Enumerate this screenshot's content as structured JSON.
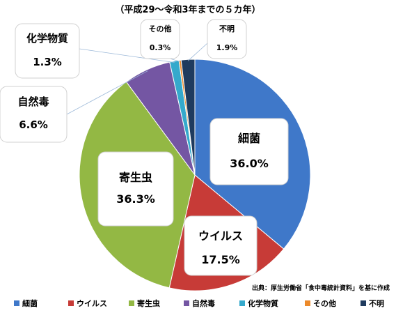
{
  "chart_data": {
    "type": "pie",
    "title": "（平成29～令和3年までの５カ年）",
    "source": "出典：厚生労働省「食中毒統計資料」を基に作成",
    "legend_position": "bottom",
    "slices": [
      {
        "name": "細菌",
        "value": 36.0,
        "label": "36.0%",
        "color": "#3f78c9"
      },
      {
        "name": "ウイルス",
        "value": 17.5,
        "label": "17.5%",
        "color": "#c73b37"
      },
      {
        "name": "寄生虫",
        "value": 36.3,
        "label": "36.3%",
        "color": "#93b844"
      },
      {
        "name": "自然毒",
        "value": 6.6,
        "label": "6.6%",
        "color": "#7456a3"
      },
      {
        "name": "化学物質",
        "value": 1.3,
        "label": "1.3%",
        "color": "#35a9cc"
      },
      {
        "name": "その他",
        "value": 0.3,
        "label": "0.3%",
        "color": "#ec8a2a"
      },
      {
        "name": "不明",
        "value": 1.9,
        "label": "1.9%",
        "color": "#1f3b5e"
      }
    ]
  }
}
